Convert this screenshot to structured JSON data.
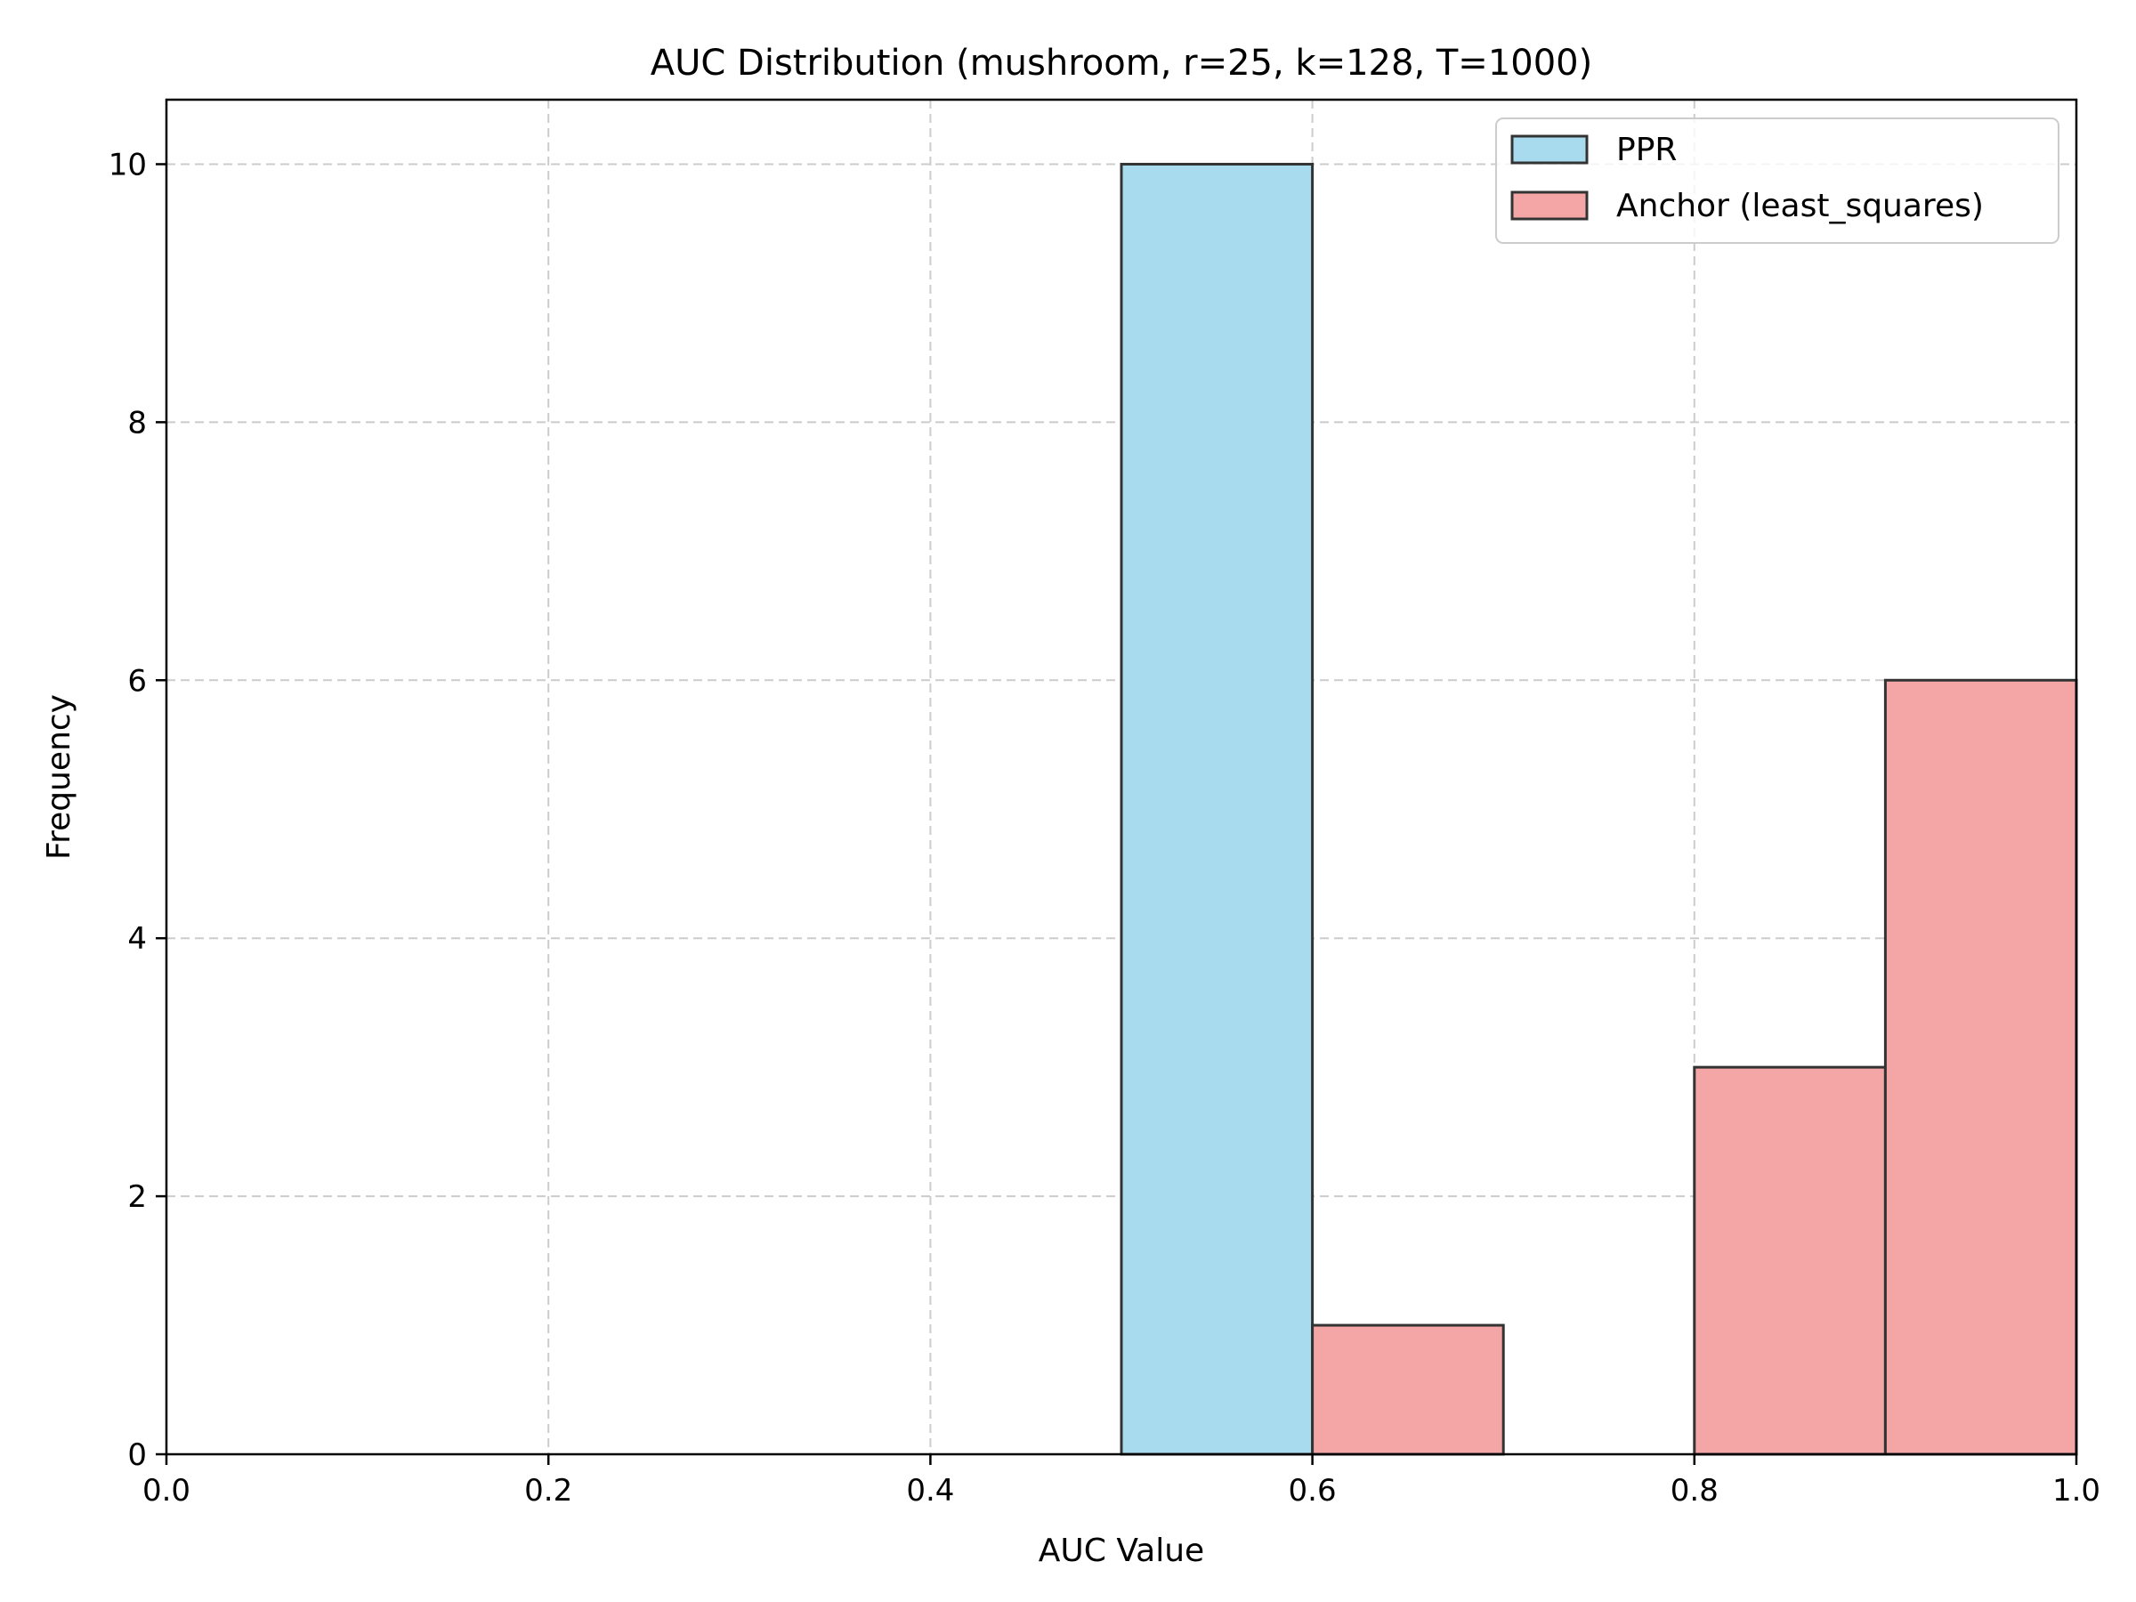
{
  "chart_data": {
    "type": "bar",
    "title": "AUC Distribution (mushroom, r=25, k=128, T=1000)",
    "xlabel": "AUC Value",
    "ylabel": "Frequency",
    "xlim": [
      0.0,
      1.0
    ],
    "ylim": [
      0,
      10.5
    ],
    "xticks": [
      "0.0",
      "0.2",
      "0.4",
      "0.6",
      "0.8",
      "1.0"
    ],
    "yticks": [
      "0",
      "2",
      "4",
      "6",
      "8",
      "10"
    ],
    "grid": true,
    "legend_position": "top-right",
    "series": [
      {
        "name": "PPR",
        "color": "#a8dbee",
        "bins": [
          {
            "start": 0.5,
            "end": 0.6,
            "count": 10
          }
        ]
      },
      {
        "name": "Anchor (least_squares)",
        "color": "#f4a6a6",
        "bins": [
          {
            "start": 0.6,
            "end": 0.7,
            "count": 1
          },
          {
            "start": 0.8,
            "end": 0.9,
            "count": 3
          },
          {
            "start": 0.9,
            "end": 1.0,
            "count": 6
          }
        ]
      }
    ]
  }
}
